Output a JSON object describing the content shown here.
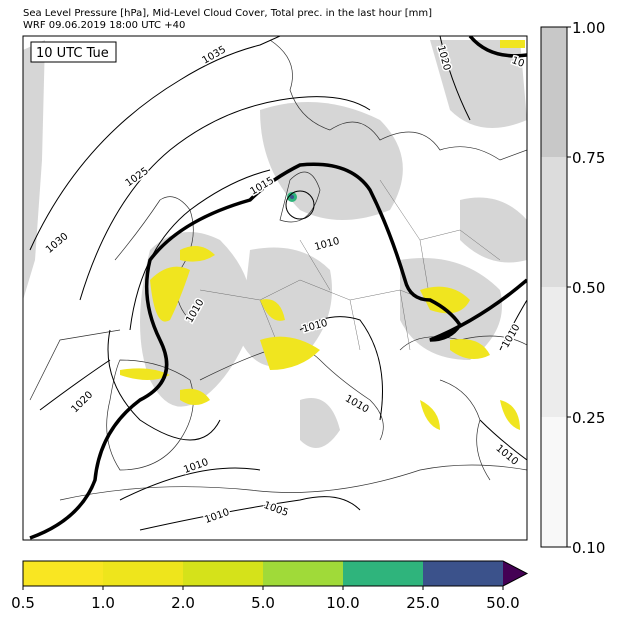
{
  "header": {
    "line1": "Sea Level Pressure [hPa], Mid-Level Cloud Cover, Total prec. in the last hour [mm]",
    "line2": "WRF 09.06.2019 18:00 UTC +40"
  },
  "map": {
    "time_label": "10 UTC Tue",
    "isobar_labels": [
      "1035",
      "1025",
      "1030",
      "1015",
      "1010",
      "1020",
      "1010",
      "1010",
      "1005",
      "1010",
      "1010",
      "1010",
      "1020",
      "1010",
      "1010",
      "10"
    ]
  },
  "cloud_colorbar": {
    "labels": [
      "1.00",
      "0.75",
      "0.50",
      "0.25",
      "0.10"
    ],
    "colors": [
      "#c8c8c8",
      "#dcdcdc",
      "#ececec",
      "#f8f8f8"
    ]
  },
  "precip_colorbar": {
    "labels": [
      "0.5",
      "1.0",
      "2.0",
      "5.0",
      "10.0",
      "25.0",
      "50.0"
    ],
    "colors": [
      "#f9e622",
      "#eee51c",
      "#d5e21a",
      "#a0da39",
      "#2fb47c",
      "#3b528b",
      "#440154"
    ]
  }
}
